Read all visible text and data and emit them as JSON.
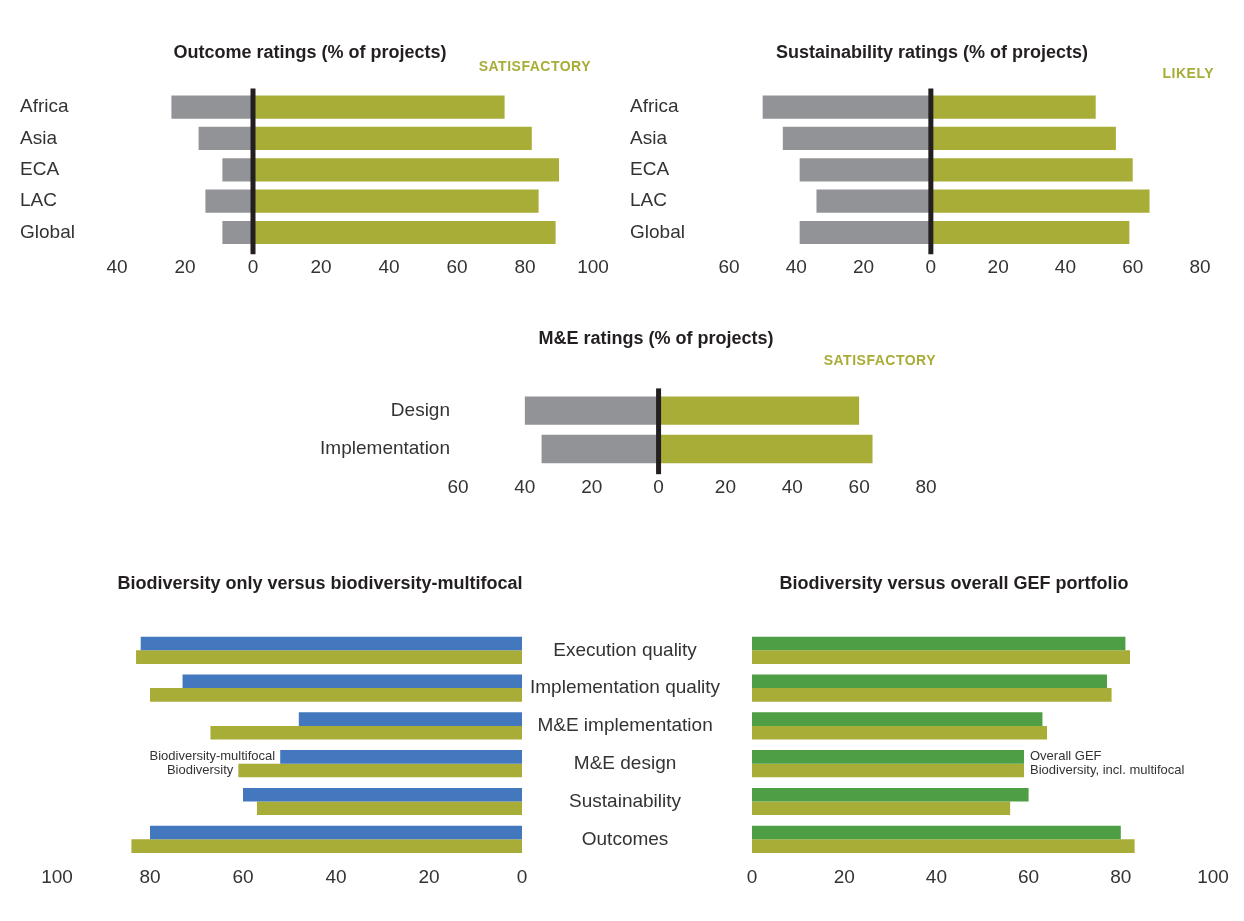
{
  "chart_data": [
    {
      "type": "bar",
      "orientation": "horizontal",
      "stacked": true,
      "title": "Outcome ratings (% of projects)",
      "categories": [
        "Africa",
        "Asia",
        "ECA",
        "LAC",
        "Global"
      ],
      "series": [
        {
          "color": "#929396",
          "values": [
            -24,
            -16,
            -9,
            -14,
            -9
          ]
        },
        {
          "name": "SATISFACTORY",
          "color": "#a8ad37",
          "values": [
            74,
            82,
            90,
            84,
            89
          ]
        }
      ],
      "xlim": [
        -40,
        100
      ],
      "xticks": [
        {
          "value": -40,
          "label": "40"
        },
        {
          "value": -20,
          "label": "20"
        },
        0,
        20,
        40,
        60,
        80,
        100
      ],
      "ref_lines": [
        {
          "axis": "x",
          "value": 0,
          "color": "#231f20"
        }
      ],
      "grid": false,
      "legend": "top right"
    },
    {
      "type": "bar",
      "orientation": "horizontal",
      "stacked": true,
      "title": "Sustainability ratings (% of projects)",
      "categories": [
        "Africa",
        "Asia",
        "ECA",
        "LAC",
        "Global"
      ],
      "series": [
        {
          "color": "#929396",
          "values": [
            -50,
            -44,
            -39,
            -34,
            -39
          ]
        },
        {
          "name": "LIKELY",
          "color": "#a8ad37",
          "values": [
            49,
            55,
            60,
            65,
            59
          ]
        }
      ],
      "xlim": [
        -60,
        80
      ],
      "xticks": [
        {
          "value": -60,
          "label": "60"
        },
        {
          "value": -40,
          "label": "40"
        },
        {
          "value": -20,
          "label": "20"
        },
        0,
        20,
        40,
        60,
        80
      ],
      "ref_lines": [
        {
          "axis": "x",
          "value": 0,
          "color": "#231f20"
        }
      ],
      "grid": false,
      "legend": "top right"
    },
    {
      "type": "bar",
      "orientation": "horizontal",
      "stacked": true,
      "title": "M&E ratings (% of projects)",
      "categories": [
        "Design",
        "Implementation"
      ],
      "series": [
        {
          "color": "#929396",
          "values": [
            -40,
            -35
          ]
        },
        {
          "name": "SATISFACTORY",
          "color": "#a8ad37",
          "values": [
            60,
            64
          ]
        }
      ],
      "xlim": [
        -60,
        80
      ],
      "xticks": [
        {
          "value": -60,
          "label": "60"
        },
        {
          "value": -40,
          "label": "40"
        },
        {
          "value": -20,
          "label": "20"
        },
        0,
        20,
        40,
        60,
        80
      ],
      "ref_lines": [
        {
          "axis": "x",
          "value": 0,
          "color": "#231f20"
        }
      ],
      "grid": false,
      "legend": "top right"
    },
    {
      "type": "bar",
      "orientation": "horizontal",
      "title": "Biodiversity only versus biodiversity-multifocal",
      "categories": [
        "Execution quality",
        "Implementation quality",
        "M&E implementation",
        "M&E design",
        "Sustainability",
        "Outcomes"
      ],
      "series": [
        {
          "name": "Biodiversity-multifocal",
          "color": "#4478be",
          "values": [
            82,
            73,
            48,
            52,
            60,
            80
          ]
        },
        {
          "name": "Biodiversity",
          "color": "#a8ad37",
          "values": [
            83,
            80,
            67,
            61,
            57,
            84
          ]
        }
      ],
      "xlim": [
        100,
        0
      ],
      "xticks": [
        100,
        80,
        60,
        40,
        20,
        0
      ],
      "grid": false,
      "legend": "left"
    },
    {
      "type": "bar",
      "orientation": "horizontal",
      "title": "Biodiversity versus overall GEF portfolio",
      "categories": [
        null,
        null,
        null,
        null,
        null,
        null
      ],
      "series": [
        {
          "name": "Overall GEF",
          "color": "#4e9e45",
          "values": [
            81,
            77,
            63,
            59,
            60,
            80
          ]
        },
        {
          "name": "Biodiversity, incl. multifocal",
          "color": "#a8ad37",
          "values": [
            82,
            78,
            64,
            59,
            56,
            83
          ]
        }
      ],
      "xlim": [
        0,
        100
      ],
      "xticks": [
        0,
        20,
        40,
        60,
        80,
        100
      ],
      "grid": false,
      "legend": "right"
    }
  ]
}
